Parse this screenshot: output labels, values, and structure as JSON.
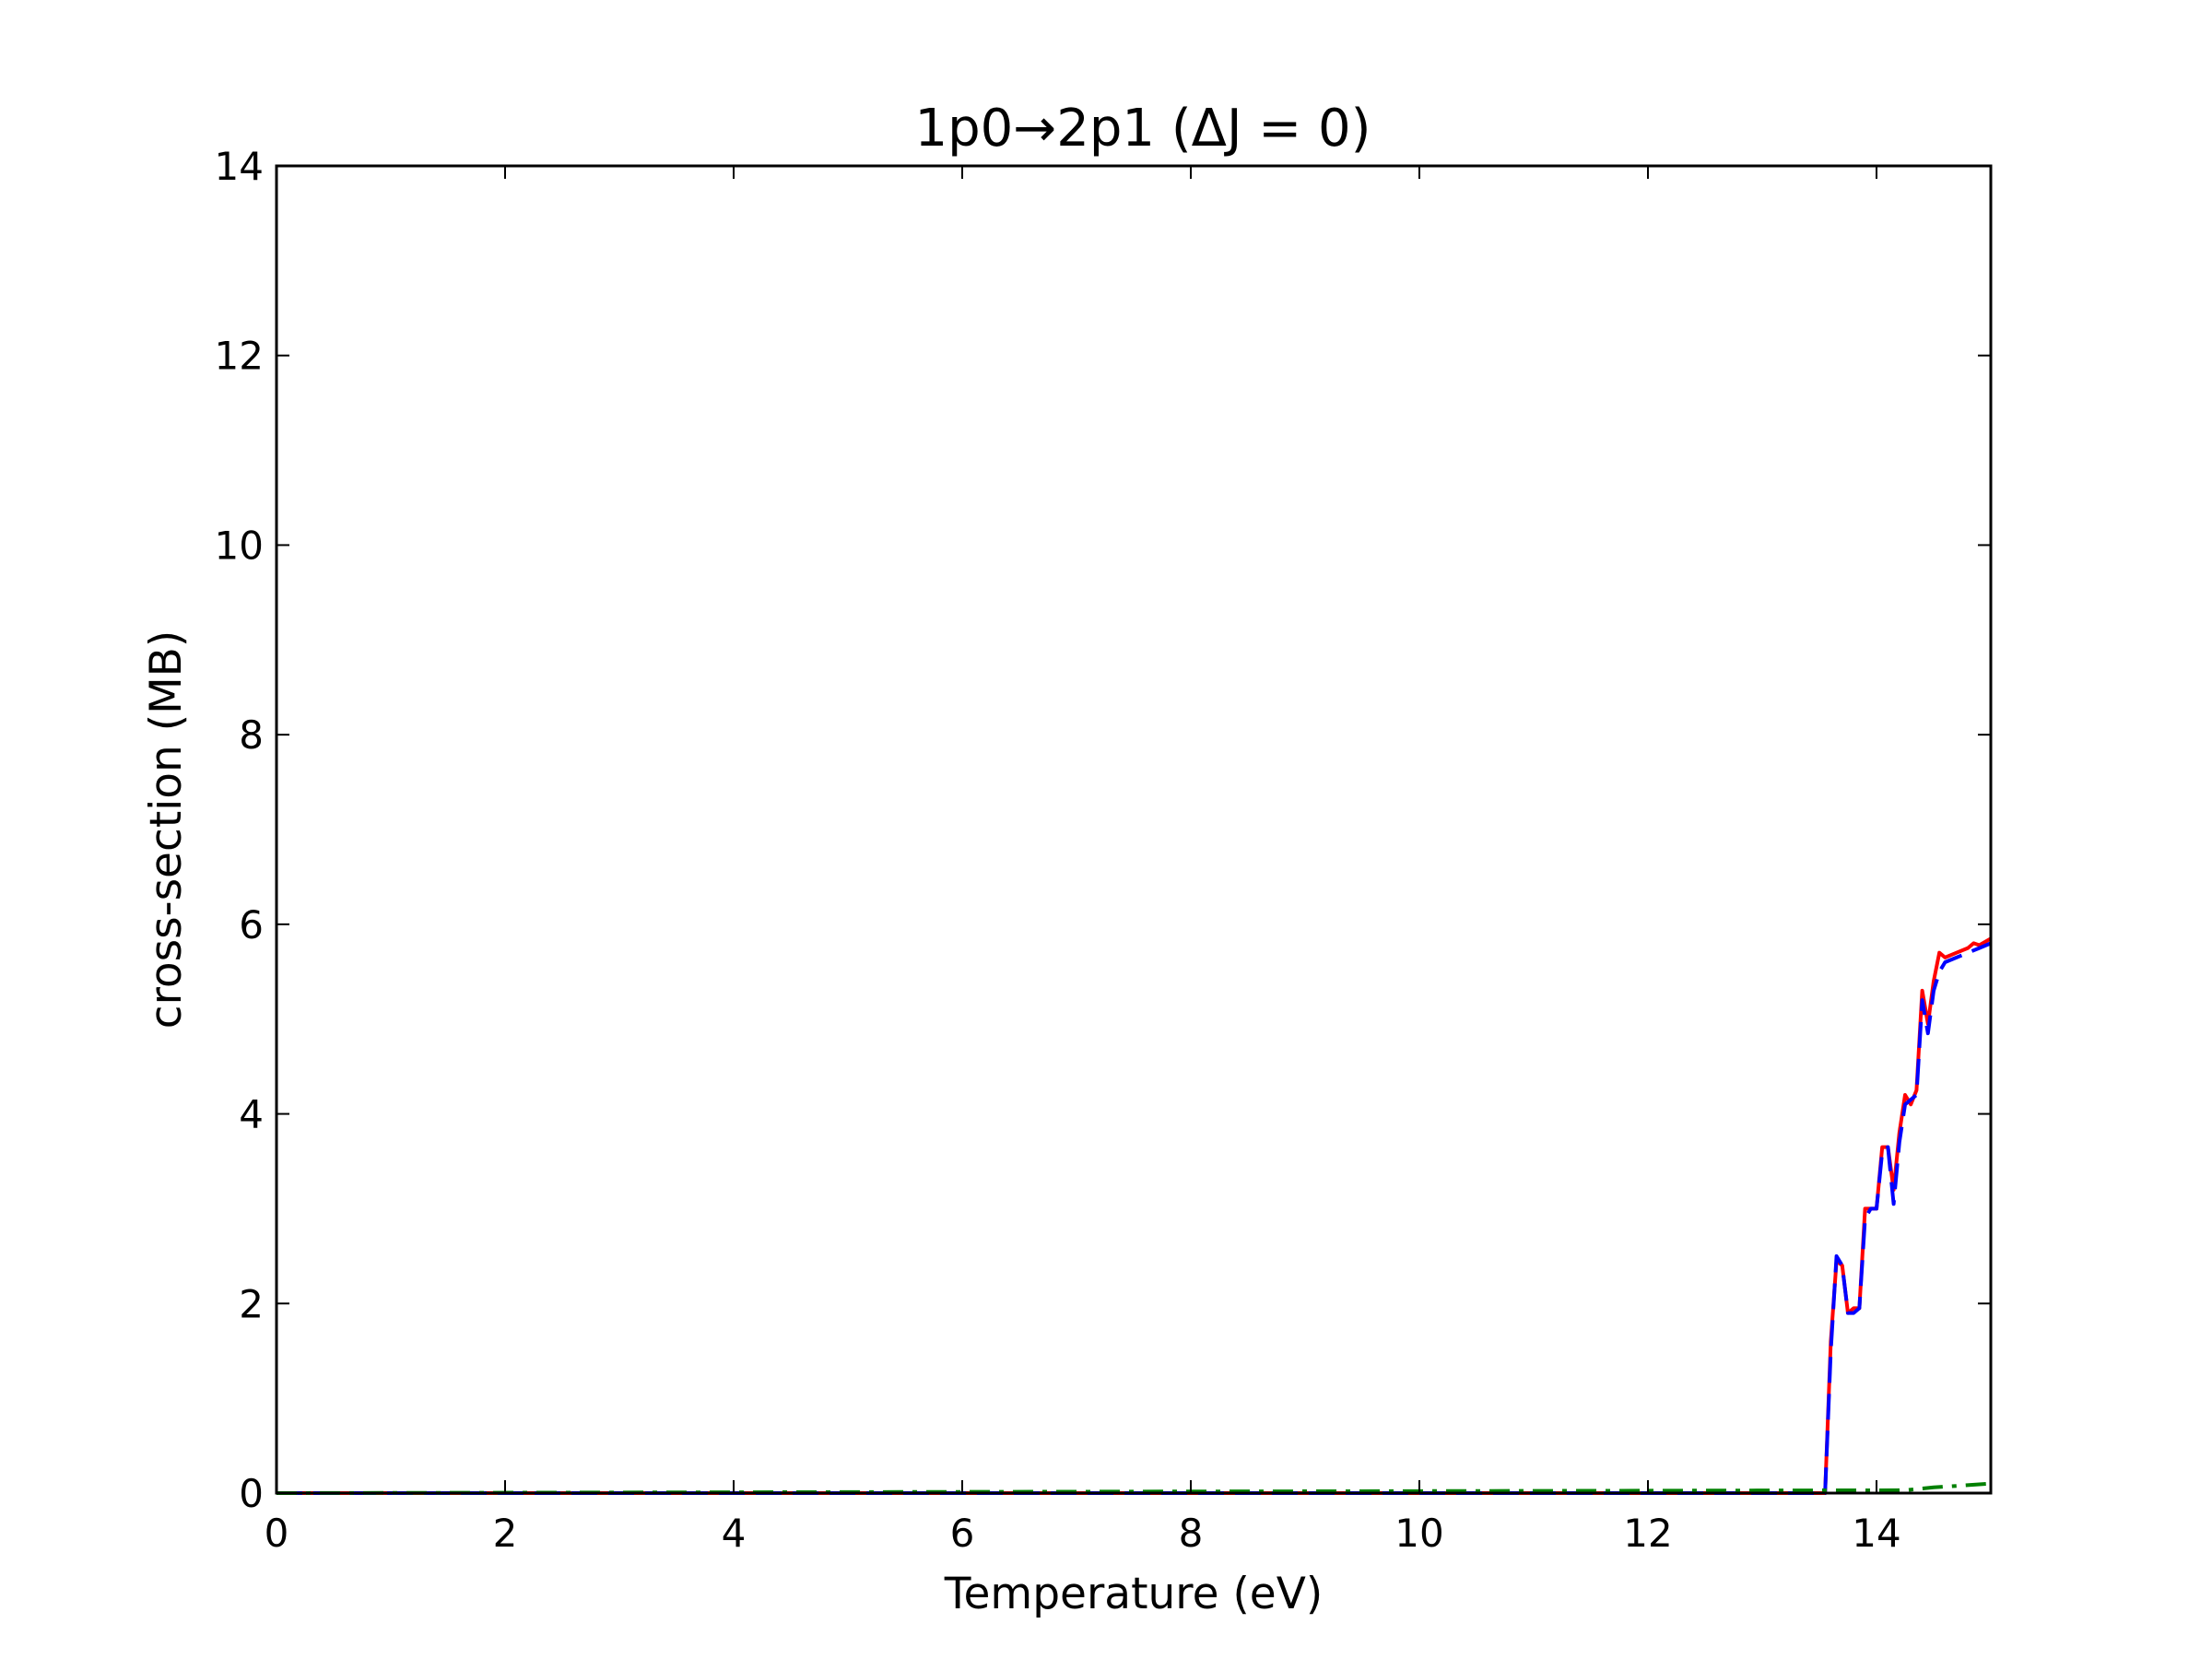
{
  "chart_data": {
    "type": "line",
    "title": "1p0→2p1  (ΔJ = 0)",
    "xlabel": "Temperature (eV)",
    "ylabel": "cross-section (MB)",
    "xlim": [
      0,
      15
    ],
    "ylim": [
      0,
      14
    ],
    "xticks": [
      0,
      2,
      4,
      6,
      8,
      10,
      12,
      14
    ],
    "yticks": [
      0,
      2,
      4,
      6,
      8,
      10,
      12,
      14
    ],
    "grid": false,
    "series": [
      {
        "color": "#ff0000",
        "style": "solid",
        "x": [
          0,
          13.55,
          13.6,
          13.65,
          13.7,
          13.75,
          13.8,
          13.85,
          13.9,
          13.95,
          14.0,
          14.05,
          14.1,
          14.15,
          14.2,
          14.25,
          14.3,
          14.35,
          14.4,
          14.45,
          14.5,
          14.55,
          14.6,
          14.7,
          14.8,
          14.85,
          14.9,
          15.0
        ],
        "y": [
          0,
          0,
          1.6,
          2.45,
          2.4,
          1.9,
          1.95,
          1.95,
          3.0,
          3.0,
          3.0,
          3.65,
          3.65,
          3.2,
          3.8,
          4.2,
          4.1,
          4.25,
          5.3,
          4.95,
          5.4,
          5.7,
          5.65,
          5.7,
          5.75,
          5.8,
          5.78,
          5.85
        ]
      },
      {
        "color": "#0000ff",
        "style": "dashed",
        "x": [
          0,
          13.55,
          13.6,
          13.65,
          13.7,
          13.75,
          13.8,
          13.85,
          13.9,
          13.95,
          14.0,
          14.05,
          14.1,
          14.15,
          14.2,
          14.25,
          14.3,
          14.35,
          14.4,
          14.45,
          14.5,
          14.55,
          14.6,
          14.7,
          14.8,
          14.9,
          15.0
        ],
        "y": [
          0,
          0,
          1.5,
          2.5,
          2.4,
          1.9,
          1.9,
          1.95,
          2.9,
          3.0,
          3.0,
          3.6,
          3.65,
          3.05,
          3.7,
          4.1,
          4.15,
          4.2,
          5.2,
          4.85,
          5.3,
          5.5,
          5.6,
          5.65,
          5.7,
          5.75,
          5.8
        ]
      },
      {
        "color": "#008000",
        "style": "dashdot",
        "x": [
          0,
          14.25,
          14.5,
          14.75,
          15.0
        ],
        "y": [
          0,
          0.03,
          0.06,
          0.08,
          0.1
        ]
      }
    ]
  }
}
